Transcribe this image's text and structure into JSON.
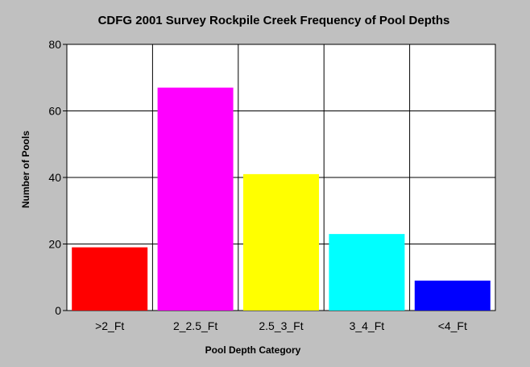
{
  "chart_data": {
    "type": "bar",
    "title": "CDFG 2001 Survey Rockpile Creek Frequency of Pool Depths",
    "xlabel": "Pool Depth Category",
    "ylabel": "Number of Pools",
    "categories": [
      ">2_Ft",
      "2_2.5_Ft",
      "2.5_3_Ft",
      "3_4_Ft",
      "<4_Ft"
    ],
    "values": [
      19,
      67,
      41,
      23,
      9
    ],
    "colors": [
      "#ff0000",
      "#ff00ff",
      "#ffff00",
      "#00ffff",
      "#0000ff"
    ],
    "ylim": [
      0,
      80
    ],
    "yticks": [
      0,
      20,
      40,
      60,
      80
    ],
    "grid": true,
    "legend": "none",
    "background": "#c0c0c0",
    "plot_background": "#ffffff"
  }
}
